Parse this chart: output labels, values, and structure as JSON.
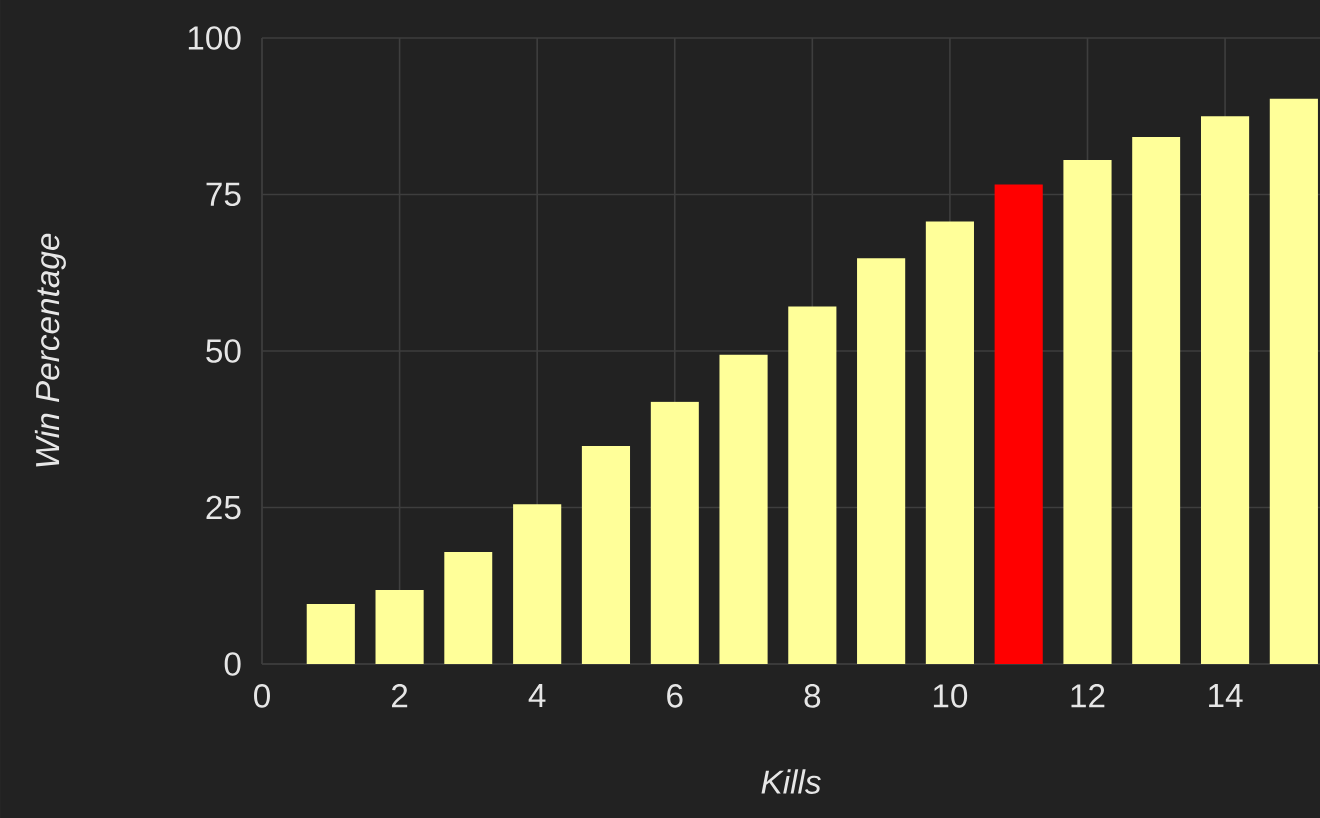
{
  "chart_data": {
    "type": "bar",
    "xlabel": "Kills",
    "ylabel": "Win Percentage",
    "x": [
      1,
      2,
      3,
      4,
      5,
      6,
      7,
      8,
      9,
      10,
      11,
      12,
      13,
      14,
      15
    ],
    "values": [
      9.6,
      11.8,
      17.9,
      25.5,
      34.8,
      41.9,
      49.4,
      57.1,
      64.8,
      70.7,
      76.6,
      80.5,
      84.2,
      87.5,
      90.3
    ],
    "colors": [
      "#ffff99",
      "#ffff99",
      "#ffff99",
      "#ffff99",
      "#ffff99",
      "#ffff99",
      "#ffff99",
      "#ffff99",
      "#ffff99",
      "#ffff99",
      "#ff0000",
      "#ffff99",
      "#ffff99",
      "#ffff99",
      "#ffff99"
    ],
    "xlim": [
      0,
      15.38
    ],
    "xticks": [
      0,
      2,
      4,
      6,
      8,
      10,
      12,
      14
    ],
    "ylim": [
      0,
      100
    ],
    "yticks": [
      0,
      25,
      50,
      75,
      100
    ],
    "grid": true
  }
}
